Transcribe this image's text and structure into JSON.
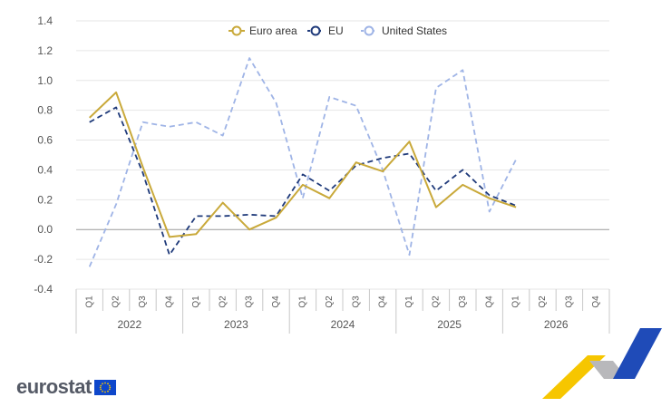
{
  "chart_data": {
    "type": "line",
    "legend": "top-center",
    "quarters": [
      "Q1",
      "Q2",
      "Q3",
      "Q4",
      "Q1",
      "Q2",
      "Q3",
      "Q4",
      "Q1",
      "Q2",
      "Q3",
      "Q4",
      "Q1",
      "Q2",
      "Q3",
      "Q4",
      "Q1",
      "Q2",
      "Q3",
      "Q4"
    ],
    "years": [
      "2022",
      "2023",
      "2024",
      "2025",
      "2026"
    ],
    "ylim": [
      -0.4,
      1.4
    ],
    "yticks": [
      "-0.4",
      "-0.2",
      "0.0",
      "0.2",
      "0.4",
      "0.6",
      "0.8",
      "1.0",
      "1.2",
      "1.4"
    ],
    "series": [
      {
        "name": "Euro area",
        "color": "#c9a93a",
        "dash": "solid",
        "values": [
          0.75,
          0.92,
          0.42,
          -0.05,
          -0.03,
          0.18,
          0.0,
          0.08,
          0.3,
          0.21,
          0.45,
          0.39,
          0.59,
          0.15,
          0.3,
          0.21,
          0.15,
          null,
          null,
          null
        ]
      },
      {
        "name": "EU",
        "color": "#1f3a7a",
        "dash": "dashed",
        "values": [
          0.72,
          0.82,
          0.38,
          -0.17,
          0.09,
          0.09,
          0.1,
          0.09,
          0.37,
          0.26,
          0.43,
          0.48,
          0.51,
          0.26,
          0.4,
          0.23,
          0.16,
          null,
          null,
          null
        ]
      },
      {
        "name": "United States",
        "color": "#9fb4e6",
        "dash": "dashed",
        "values": [
          -0.25,
          0.17,
          0.72,
          0.69,
          0.72,
          0.63,
          1.15,
          0.85,
          0.21,
          0.89,
          0.83,
          0.4,
          -0.17,
          0.95,
          1.07,
          0.12,
          0.47,
          null,
          null,
          null
        ]
      }
    ]
  },
  "branding": {
    "logo_text": "eurostat",
    "logo_color": "#555a66",
    "flag_color": "#0e47cb",
    "accent_yellow": "#f6c600",
    "accent_blue": "#1f4bb8"
  }
}
